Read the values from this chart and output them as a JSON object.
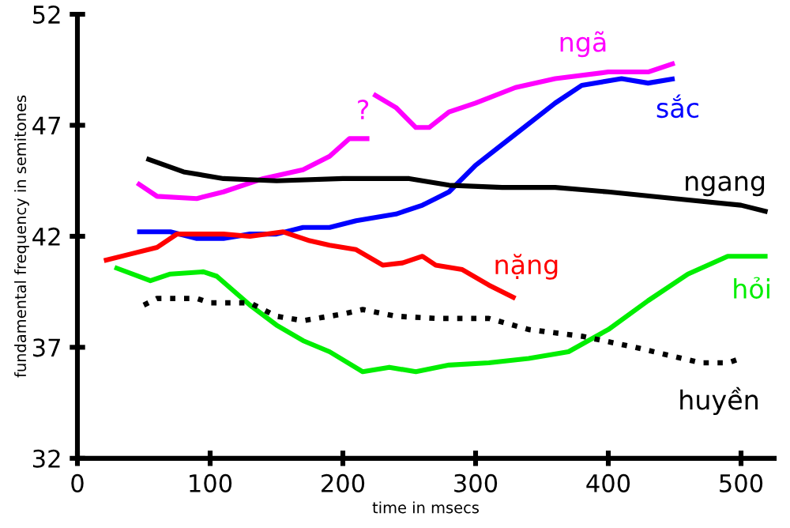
{
  "chart_data": {
    "type": "line",
    "xlabel": "time in msecs",
    "ylabel": "fundamental frequency in semitones",
    "xlim": [
      0,
      525
    ],
    "ylim": [
      32,
      52
    ],
    "xticks": [
      0,
      100,
      200,
      300,
      400,
      500
    ],
    "yticks": [
      32,
      37,
      42,
      47,
      52
    ],
    "grid": false,
    "legend": false,
    "annotations": [
      "?"
    ],
    "series": [
      {
        "name": "ngã",
        "color": "#ff00ff",
        "x": [
          45,
          60,
          90,
          110,
          140,
          170,
          190,
          205,
          220,
          222,
          223,
          240,
          255,
          265,
          280,
          300,
          330,
          360,
          400,
          430,
          450
        ],
        "values": [
          44.4,
          43.8,
          43.7,
          44.0,
          44.6,
          45.0,
          45.6,
          46.4,
          46.4,
          null,
          48.4,
          47.8,
          46.9,
          46.9,
          47.6,
          48.0,
          48.7,
          49.1,
          49.4,
          49.4,
          49.8
        ]
      },
      {
        "name": "sắc",
        "color": "#0000ff",
        "x": [
          45,
          70,
          90,
          110,
          130,
          150,
          170,
          190,
          210,
          240,
          260,
          280,
          300,
          330,
          360,
          380,
          410,
          430,
          450
        ],
        "values": [
          42.2,
          42.2,
          41.9,
          41.9,
          42.1,
          42.1,
          42.4,
          42.4,
          42.7,
          43.0,
          43.4,
          44.0,
          45.2,
          46.6,
          48.0,
          48.8,
          49.1,
          48.9,
          49.1
        ]
      },
      {
        "name": "ngang",
        "color": "#000000",
        "x": [
          52,
          80,
          110,
          150,
          200,
          250,
          280,
          320,
          360,
          400,
          450,
          500,
          520
        ],
        "values": [
          45.5,
          44.9,
          44.6,
          44.5,
          44.6,
          44.6,
          44.3,
          44.2,
          44.2,
          44.0,
          43.7,
          43.4,
          43.1
        ]
      },
      {
        "name": "nặng",
        "color": "#ff0000",
        "x": [
          20,
          40,
          60,
          75,
          110,
          130,
          155,
          175,
          190,
          210,
          230,
          245,
          260,
          270,
          290,
          310,
          330
        ],
        "values": [
          40.9,
          41.2,
          41.5,
          42.1,
          42.1,
          42.0,
          42.2,
          41.8,
          41.6,
          41.4,
          40.7,
          40.8,
          41.1,
          40.7,
          40.5,
          39.8,
          39.2
        ]
      },
      {
        "name": "hỏi",
        "color": "#00ee00",
        "x": [
          28,
          55,
          70,
          95,
          105,
          130,
          150,
          170,
          190,
          215,
          235,
          255,
          280,
          310,
          340,
          370,
          400,
          430,
          460,
          490,
          520
        ],
        "values": [
          40.6,
          40.0,
          40.3,
          40.4,
          40.2,
          38.9,
          38.0,
          37.3,
          36.8,
          35.9,
          36.1,
          35.9,
          36.2,
          36.3,
          36.5,
          36.8,
          37.8,
          39.1,
          40.3,
          41.1,
          41.1
        ]
      },
      {
        "name": "huyền",
        "color": "#000000",
        "line_style": "dotted",
        "x": [
          50,
          60,
          90,
          100,
          130,
          150,
          170,
          200,
          215,
          240,
          270,
          310,
          340,
          380,
          420,
          470,
          490,
          500
        ],
        "values": [
          38.9,
          39.2,
          39.2,
          39.0,
          39.0,
          38.4,
          38.2,
          38.5,
          38.7,
          38.4,
          38.3,
          38.3,
          37.8,
          37.5,
          37.0,
          36.3,
          36.3,
          36.5
        ]
      }
    ]
  }
}
